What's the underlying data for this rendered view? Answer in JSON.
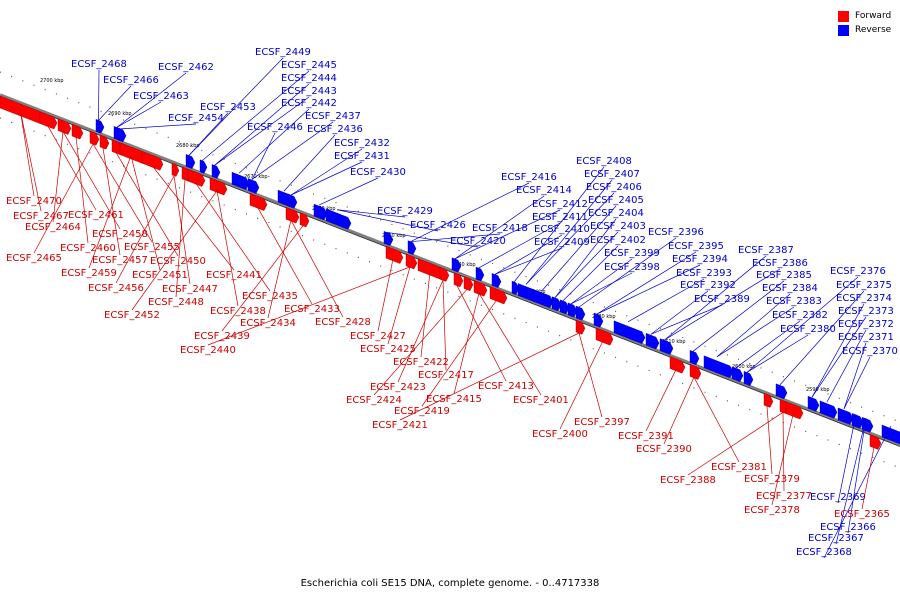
{
  "caption": "Escherichia coli SE15 DNA, complete genome. - 0..4717338",
  "legend": [
    {
      "label": "Forward",
      "color": "#ff0000"
    },
    {
      "label": "Reverse",
      "color": "#0000ff"
    }
  ],
  "colors": {
    "forward": "#ff0000",
    "reverse": "#0000ff",
    "backbone": "#808080",
    "forward_label": "#cc0000",
    "reverse_label": "#0000cc"
  },
  "ticks": [
    "2700 kbp",
    "2690 kbp",
    "2680 kbp",
    "2670 kbp",
    "2660 kbp",
    "2650 kbp",
    "2640 kbp",
    "2630 kbp",
    "2620 kbp",
    "2610 kbp",
    "2600 kbp",
    "2590 kbp"
  ],
  "reverse_labels": [
    "ECSF_2468",
    "ECSF_2466",
    "ECSF_2462",
    "ECSF_2463",
    "ECSF_2454",
    "ECSF_2453",
    "ECSF_2449",
    "ECSF_2445",
    "ECSF_2444",
    "ECSF_2443",
    "ECSF_2442",
    "ECSF_2446",
    "ECSF_2437",
    "ECSF_2436",
    "ECSF_2432",
    "ECSF_2431",
    "ECSF_2430",
    "ECSF_2429",
    "ECSF_2426",
    "ECSF_2420",
    "ECSF_2418",
    "ECSF_2416",
    "ECSF_2414",
    "ECSF_2412",
    "ECSF_2411",
    "ECSF_2410",
    "ECSF_2409",
    "ECSF_2408",
    "ECSF_2407",
    "ECSF_2406",
    "ECSF_2405",
    "ECSF_2404",
    "ECSF_2403",
    "ECSF_2402",
    "ECSF_2399",
    "ECSF_2398",
    "ECSF_2396",
    "ECSF_2395",
    "ECSF_2394",
    "ECSF_2393",
    "ECSF_2392",
    "ECSF_2389",
    "ECSF_2387",
    "ECSF_2386",
    "ECSF_2385",
    "ECSF_2384",
    "ECSF_2383",
    "ECSF_2382",
    "ECSF_2380",
    "ECSF_2376",
    "ECSF_2375",
    "ECSF_2374",
    "ECSF_2373",
    "ECSF_2372",
    "ECSF_2371",
    "ECSF_2370",
    "ECSF_2369",
    "ECSF_2366",
    "ECSF_2367",
    "ECSF_2368"
  ],
  "forward_labels": [
    "ECSF_2470",
    "ECSF_2467",
    "ECSF_2461",
    "ECSF_2464",
    "ECSF_2458",
    "ECSF_2460",
    "ECSF_2465",
    "ECSF_2455",
    "ECSF_2457",
    "ECSF_2450",
    "ECSF_2459",
    "ECSF_2451",
    "ECSF_2441",
    "ECSF_2456",
    "ECSF_2447",
    "ECSF_2448",
    "ECSF_2435",
    "ECSF_2452",
    "ECSF_2438",
    "ECSF_2433",
    "ECSF_2434",
    "ECSF_2428",
    "ECSF_2439",
    "ECSF_2427",
    "ECSF_2440",
    "ECSF_2425",
    "ECSF_2422",
    "ECSF_2417",
    "ECSF_2423",
    "ECSF_2413",
    "ECSF_2424",
    "ECSF_2415",
    "ECSF_2401",
    "ECSF_2419",
    "ECSF_2421",
    "ECSF_2397",
    "ECSF_2400",
    "ECSF_2391",
    "ECSF_2390",
    "ECSF_2381",
    "ECSF_2379",
    "ECSF_2388",
    "ECSF_2377",
    "ECSF_2378",
    "ECSF_2365"
  ]
}
